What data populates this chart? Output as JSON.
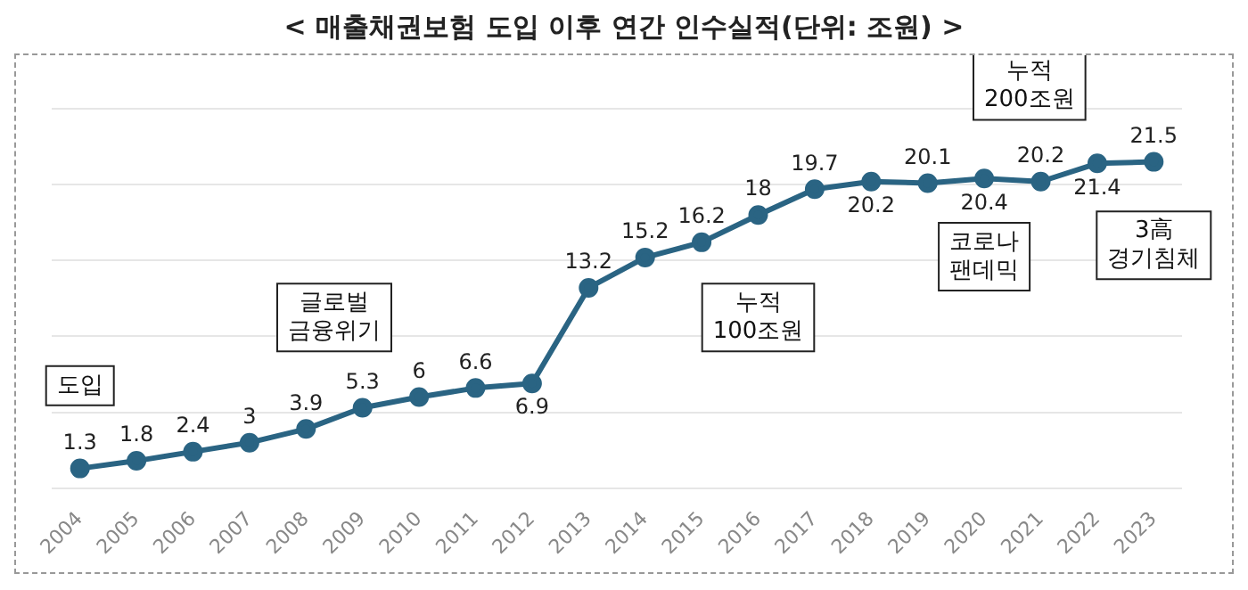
{
  "chart_data": {
    "type": "line",
    "title": "< 매출채권보험 도입 이후 연간 인수실적(단위: 조원) >",
    "categories": [
      "2004",
      "2005",
      "2006",
      "2007",
      "2008",
      "2009",
      "2010",
      "2011",
      "2012",
      "2013",
      "2014",
      "2015",
      "2016",
      "2017",
      "2018",
      "2019",
      "2020",
      "2021",
      "2022",
      "2023"
    ],
    "series": [
      {
        "color": "#2a6483",
        "values": [
          1.3,
          1.8,
          2.4,
          3,
          3.9,
          5.3,
          6,
          6.6,
          6.9,
          13.2,
          15.2,
          16.2,
          18,
          19.7,
          20.2,
          20.1,
          20.4,
          20.2,
          21.4,
          21.5
        ]
      }
    ],
    "ylim": [
      0,
      25
    ],
    "yticks": [
      {
        "value": 0,
        "label": null
      },
      {
        "value": 5,
        "label": null
      },
      {
        "value": 10,
        "label": null
      },
      {
        "value": 15,
        "label": null
      },
      {
        "value": 20,
        "label": null
      },
      {
        "value": 25,
        "label": null
      }
    ],
    "grid": "y",
    "tick_labels": "x",
    "marker": "circle",
    "line_style": "solid",
    "data_labels": true,
    "legend": false,
    "annotations": [
      "도입",
      "글로벌\n금융위기",
      "누적\n100조원",
      "누적\n200조원",
      "코로나\n팬데믹",
      "3高\n경기침체"
    ]
  }
}
